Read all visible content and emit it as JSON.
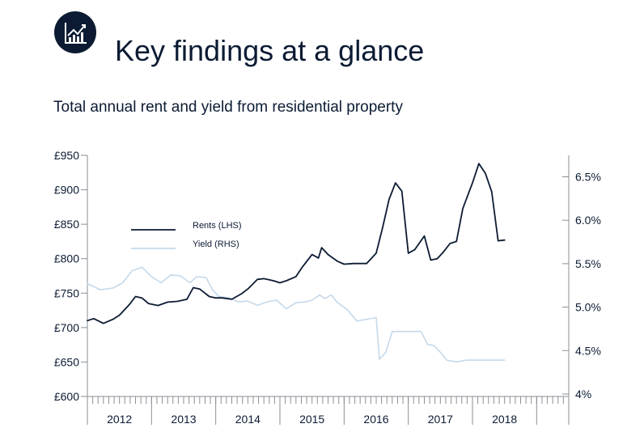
{
  "header": {
    "title": "Key findings at a glance",
    "icon": "bar-chart-growth-icon"
  },
  "colors": {
    "navy": "#0c1b33",
    "yield_line": "#c5d9ea",
    "axis": "#8a8f96"
  },
  "chart_data": {
    "type": "line",
    "title": "Total annual rent and yield from residential property",
    "x_labels": [
      "2012",
      "2013",
      "2014",
      "2015",
      "2016",
      "2017",
      "2018"
    ],
    "x_range": [
      2011.5,
      2019.0
    ],
    "y_left": {
      "range": [
        600,
        950
      ],
      "ticks": [
        600,
        650,
        700,
        750,
        800,
        850,
        900,
        950
      ],
      "tick_labels": [
        "£600",
        "£650",
        "£700",
        "£750",
        "£800",
        "£850",
        "£900",
        "£950"
      ]
    },
    "y_right": {
      "range": [
        4.0,
        6.7
      ],
      "ticks": [
        4.0,
        4.5,
        5.0,
        5.5,
        6.0,
        6.5
      ],
      "tick_labels": [
        "4%",
        "4.5%",
        "5.0%",
        "5.5%",
        "6.0%",
        "6.5%"
      ]
    },
    "legend_position": "upper-left",
    "series": [
      {
        "name": "Rents (LHS)",
        "axis": "left",
        "color": "#0c1b33",
        "points": [
          [
            2011.5,
            710
          ],
          [
            2011.6,
            713
          ],
          [
            2011.75,
            706
          ],
          [
            2011.9,
            712
          ],
          [
            2012.0,
            718
          ],
          [
            2012.15,
            733
          ],
          [
            2012.25,
            745
          ],
          [
            2012.35,
            743
          ],
          [
            2012.45,
            735
          ],
          [
            2012.6,
            732
          ],
          [
            2012.75,
            737
          ],
          [
            2012.9,
            738
          ],
          [
            2013.05,
            741
          ],
          [
            2013.15,
            758
          ],
          [
            2013.25,
            756
          ],
          [
            2013.4,
            745
          ],
          [
            2013.5,
            743
          ],
          [
            2013.6,
            743
          ],
          [
            2013.75,
            741
          ],
          [
            2013.9,
            749
          ],
          [
            2014.0,
            756
          ],
          [
            2014.15,
            770
          ],
          [
            2014.25,
            771
          ],
          [
            2014.4,
            768
          ],
          [
            2014.5,
            765
          ],
          [
            2014.6,
            768
          ],
          [
            2014.75,
            774
          ],
          [
            2014.85,
            788
          ],
          [
            2015.0,
            806
          ],
          [
            2015.1,
            801
          ],
          [
            2015.15,
            816
          ],
          [
            2015.25,
            806
          ],
          [
            2015.4,
            796
          ],
          [
            2015.5,
            792
          ],
          [
            2015.65,
            793
          ],
          [
            2015.75,
            793
          ],
          [
            2015.85,
            793
          ],
          [
            2016.0,
            808
          ],
          [
            2016.1,
            845
          ],
          [
            2016.2,
            886
          ],
          [
            2016.3,
            910
          ],
          [
            2016.4,
            898
          ],
          [
            2016.5,
            808
          ],
          [
            2016.6,
            813
          ],
          [
            2016.75,
            833
          ],
          [
            2016.85,
            798
          ],
          [
            2016.95,
            800
          ],
          [
            2017.05,
            810
          ],
          [
            2017.15,
            822
          ],
          [
            2017.25,
            825
          ],
          [
            2017.35,
            873
          ],
          [
            2017.5,
            910
          ],
          [
            2017.6,
            938
          ],
          [
            2017.7,
            924
          ],
          [
            2017.8,
            897
          ],
          [
            2017.9,
            826
          ],
          [
            2018.0,
            827
          ]
        ]
      },
      {
        "name": "Yield (RHS)",
        "axis": "right",
        "color": "#c5d9ea",
        "points": [
          [
            2011.5,
            5.27
          ],
          [
            2011.7,
            5.2
          ],
          [
            2011.9,
            5.22
          ],
          [
            2012.05,
            5.28
          ],
          [
            2012.2,
            5.42
          ],
          [
            2012.35,
            5.46
          ],
          [
            2012.5,
            5.35
          ],
          [
            2012.65,
            5.28
          ],
          [
            2012.8,
            5.37
          ],
          [
            2012.95,
            5.36
          ],
          [
            2013.1,
            5.28
          ],
          [
            2013.2,
            5.35
          ],
          [
            2013.35,
            5.34
          ],
          [
            2013.45,
            5.2
          ],
          [
            2013.55,
            5.12
          ],
          [
            2013.7,
            5.11
          ],
          [
            2013.85,
            5.06
          ],
          [
            2014.0,
            5.07
          ],
          [
            2014.15,
            5.02
          ],
          [
            2014.3,
            5.06
          ],
          [
            2014.45,
            5.08
          ],
          [
            2014.6,
            4.98
          ],
          [
            2014.75,
            5.05
          ],
          [
            2014.9,
            5.06
          ],
          [
            2015.0,
            5.08
          ],
          [
            2015.12,
            5.14
          ],
          [
            2015.2,
            5.1
          ],
          [
            2015.3,
            5.14
          ],
          [
            2015.4,
            5.05
          ],
          [
            2015.55,
            4.97
          ],
          [
            2015.7,
            4.84
          ],
          [
            2015.85,
            4.86
          ],
          [
            2016.0,
            4.88
          ],
          [
            2016.05,
            4.4
          ],
          [
            2016.15,
            4.48
          ],
          [
            2016.25,
            4.72
          ],
          [
            2016.4,
            4.72
          ],
          [
            2016.55,
            4.72
          ],
          [
            2016.7,
            4.72
          ],
          [
            2016.8,
            4.57
          ],
          [
            2016.9,
            4.56
          ],
          [
            2017.0,
            4.48
          ],
          [
            2017.1,
            4.39
          ],
          [
            2017.25,
            4.37
          ],
          [
            2017.4,
            4.39
          ],
          [
            2017.6,
            4.39
          ],
          [
            2017.8,
            4.39
          ],
          [
            2018.0,
            4.39
          ]
        ]
      }
    ]
  }
}
